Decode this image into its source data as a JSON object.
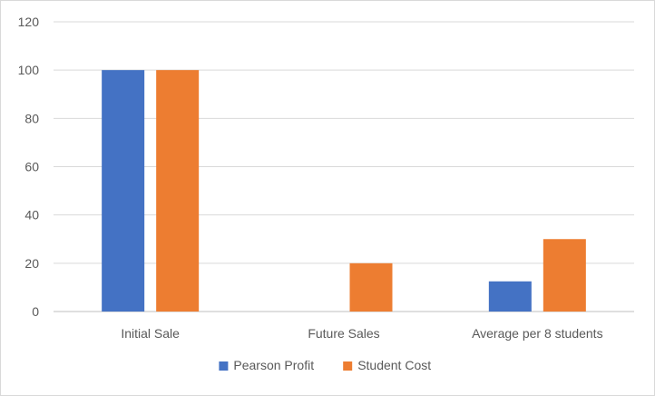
{
  "chart_data": {
    "type": "bar",
    "categories": [
      "Initial Sale",
      "Future Sales",
      "Average per 8 students"
    ],
    "series": [
      {
        "name": "Pearson Profit",
        "color": "#4472C4",
        "values": [
          100,
          0,
          12.5
        ]
      },
      {
        "name": "Student Cost",
        "color": "#ED7D31",
        "values": [
          100,
          20,
          30
        ]
      }
    ],
    "yticks": [
      0,
      20,
      40,
      60,
      80,
      100,
      120
    ],
    "ylim": [
      0,
      120
    ],
    "grid": true,
    "legend": "bottom"
  }
}
